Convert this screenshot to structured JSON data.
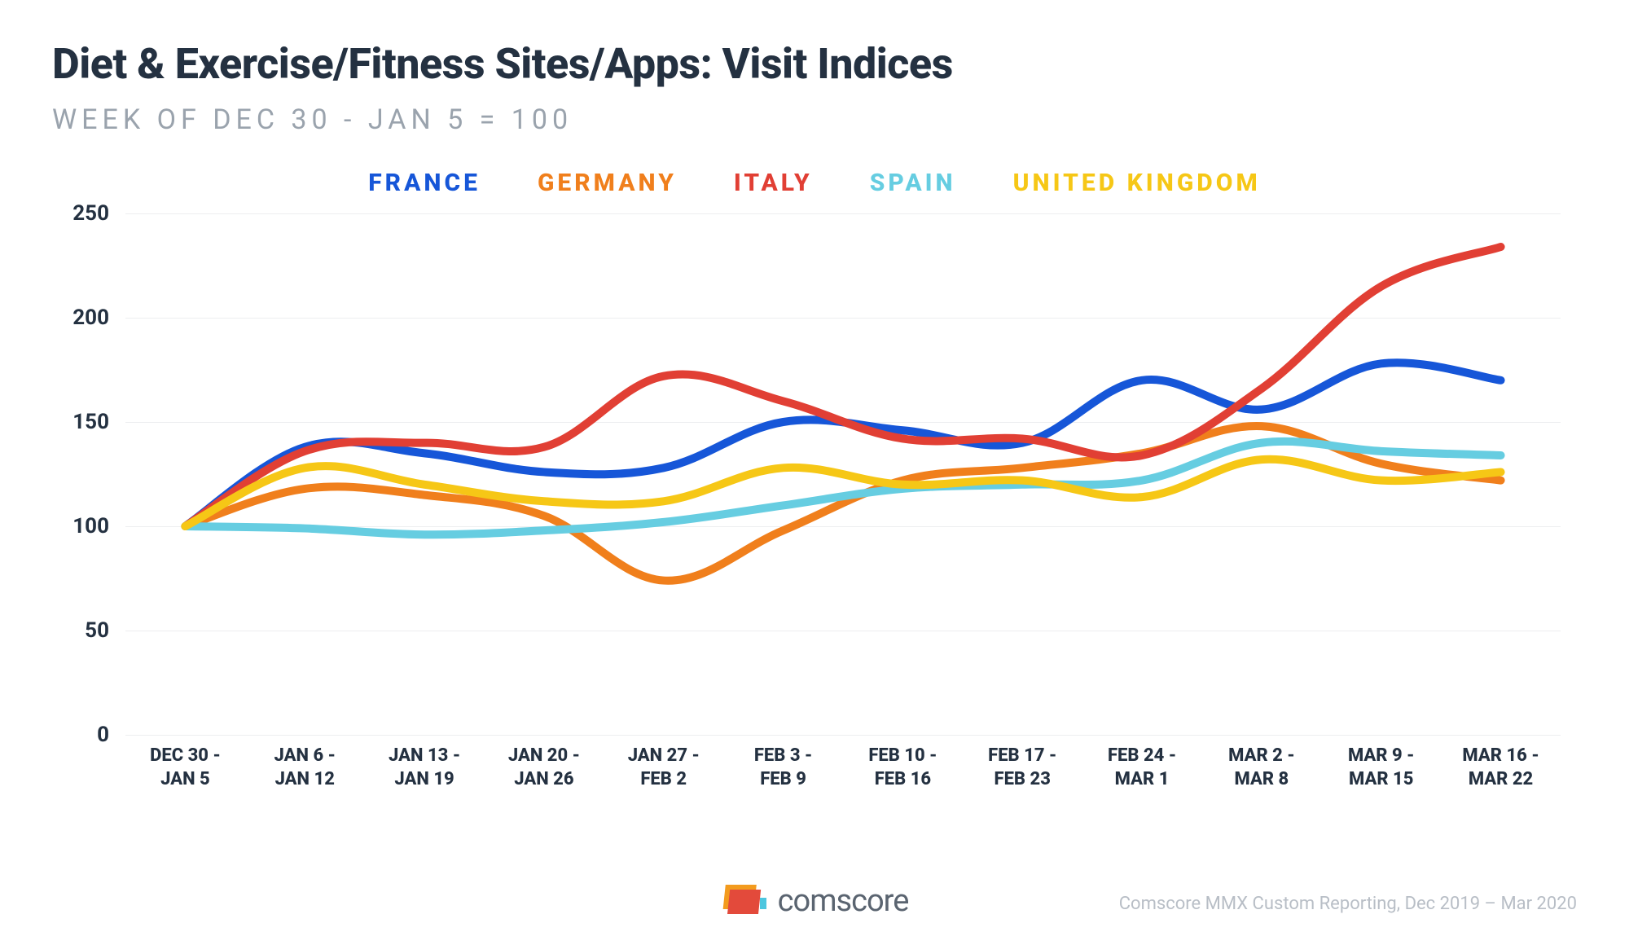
{
  "title": "Diet & Exercise/Fitness Sites/Apps: Visit Indices",
  "subtitle": "WEEK OF DEC 30 - JAN 5 = 100",
  "source_note": "Comscore MMX Custom Reporting, Dec 2019 – Mar 2020",
  "logo_text": "comscore",
  "logo_colors": {
    "back": "#f39b1e",
    "front": "#e34a3b",
    "accent": "#4cc6df"
  },
  "chart": {
    "type": "line",
    "background_color": "#ffffff",
    "grid_color": "#edeef0",
    "axis_text_color": "#243141",
    "line_width": 10,
    "title_fontsize": 52,
    "subtitle_fontsize": 34,
    "legend_fontsize": 30,
    "axis_fontsize": 24,
    "ylim": [
      0,
      250
    ],
    "y_ticks": [
      0,
      50,
      100,
      150,
      200,
      250
    ],
    "x_labels": [
      "DEC 30 -\nJAN 5",
      "JAN 6 -\nJAN 12",
      "JAN 13 -\nJAN 19",
      "JAN 20 -\nJAN 26",
      "JAN 27 -\nFEB 2",
      "FEB 3 -\nFEB 9",
      "FEB 10 -\nFEB 16",
      "FEB 17 -\nFEB 23",
      "FEB 24 -\nMAR 1",
      "MAR 2 -\nMAR 8",
      "MAR 9 -\nMAR 15",
      "MAR 16 -\nMAR 22"
    ],
    "series": [
      {
        "name": "FRANCE",
        "color": "#1656d8",
        "values": [
          100,
          138,
          135,
          126,
          128,
          150,
          146,
          140,
          170,
          156,
          178,
          170
        ]
      },
      {
        "name": "GERMANY",
        "color": "#f07f1c",
        "values": [
          100,
          118,
          115,
          105,
          74,
          98,
          122,
          128,
          135,
          148,
          130,
          122
        ]
      },
      {
        "name": "ITALY",
        "color": "#e13f34",
        "values": [
          100,
          136,
          140,
          138,
          172,
          160,
          142,
          142,
          134,
          166,
          215,
          234
        ]
      },
      {
        "name": "SPAIN",
        "color": "#66cde1",
        "values": [
          100,
          99,
          96,
          98,
          102,
          110,
          118,
          120,
          122,
          140,
          136,
          134
        ]
      },
      {
        "name": "UNITED KINGDOM",
        "color": "#f6c716",
        "values": [
          100,
          128,
          120,
          112,
          112,
          128,
          120,
          122,
          114,
          132,
          122,
          126
        ]
      }
    ]
  }
}
